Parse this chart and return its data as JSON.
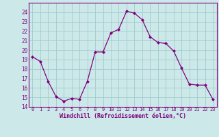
{
  "x": [
    0,
    1,
    2,
    3,
    4,
    5,
    6,
    7,
    8,
    9,
    10,
    11,
    12,
    13,
    14,
    15,
    16,
    17,
    18,
    19,
    20,
    21,
    22,
    23
  ],
  "y": [
    19.3,
    18.8,
    16.7,
    15.1,
    14.6,
    14.9,
    14.8,
    16.7,
    19.8,
    19.8,
    21.8,
    22.2,
    24.1,
    23.9,
    23.2,
    21.4,
    20.8,
    20.7,
    19.9,
    18.1,
    16.4,
    16.3,
    16.3,
    14.8
  ],
  "line_color": "#800080",
  "marker": "D",
  "marker_size": 2.0,
  "bg_color": "#cce8e8",
  "grid_color": "#a0cccc",
  "xlabel": "Windchill (Refroidissement éolien,°C)",
  "xlabel_color": "#800080",
  "ylim": [
    14,
    25
  ],
  "xlim": [
    -0.5,
    23.5
  ],
  "yticks": [
    14,
    15,
    16,
    17,
    18,
    19,
    20,
    21,
    22,
    23,
    24
  ],
  "xtick_labels": [
    "0",
    "1",
    "2",
    "3",
    "4",
    "5",
    "6",
    "7",
    "8",
    "9",
    "10",
    "11",
    "12",
    "13",
    "14",
    "15",
    "16",
    "17",
    "18",
    "19",
    "20",
    "21",
    "22",
    "23"
  ],
  "tick_color": "#800080",
  "spine_color": "#800080",
  "tick_fontsize": 5.0,
  "ytick_fontsize": 5.5,
  "xlabel_fontsize": 6.0
}
